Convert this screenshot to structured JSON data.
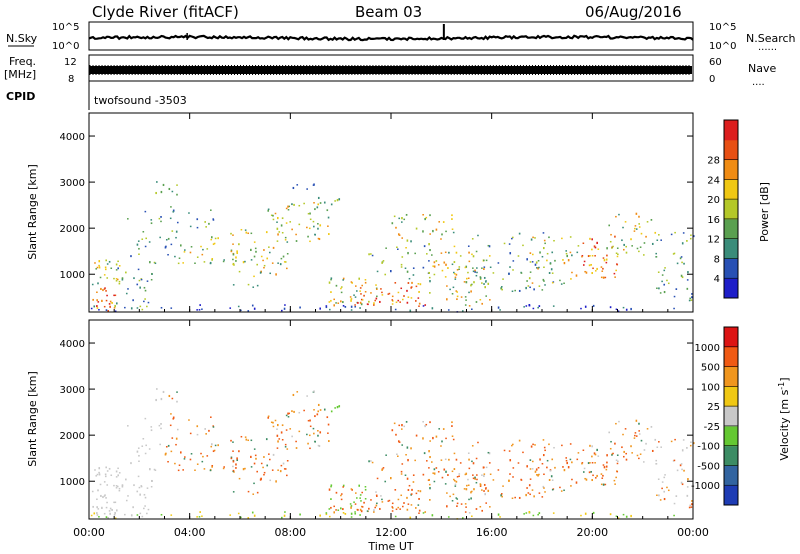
{
  "header": {
    "station": "Clyde River (fitACF)",
    "beam": "Beam 03",
    "date": "06/Aug/2016"
  },
  "top_panels": {
    "nsky_label": "N.Sky",
    "nsearch_label": "N.Search",
    "nsky_ticks": [
      "10^5",
      "10^0"
    ],
    "nsearch_ticks": [
      "10^5",
      "10^0"
    ],
    "freq_label_1": "Freq.",
    "freq_label_2": "[MHz]",
    "freq_ticks": [
      "12",
      "8"
    ],
    "nave_label": "Nave",
    "nave_ticks": [
      "60",
      "0"
    ],
    "cpid_label": "CPID",
    "cpid_value": "twofsound -3503",
    "dotted_marker": "......",
    "nave_marker": "...."
  },
  "chart_data": [
    {
      "type": "heatmap",
      "name": "power",
      "ylabel": "Slant Range [km]",
      "xlabel": "Time UT",
      "x_ticks": [
        "00:00",
        "04:00",
        "08:00",
        "12:00",
        "16:00",
        "20:00",
        "00:00"
      ],
      "x_range_hours": [
        0,
        24
      ],
      "y_ticks": [
        1000,
        2000,
        3000,
        4000
      ],
      "ylim": [
        180,
        4500
      ],
      "colorbar": {
        "label": "Power [dB]",
        "ticks": [
          4,
          8,
          12,
          16,
          20,
          24,
          28
        ],
        "range": [
          0,
          30
        ],
        "colors": [
          "#1e1ec8",
          "#2850b4",
          "#3a8c7a",
          "#5aa050",
          "#b4c828",
          "#f0c814",
          "#f08c14",
          "#e85014",
          "#dc1e1e"
        ]
      }
    },
    {
      "type": "heatmap",
      "name": "velocity",
      "ylabel": "Slant Range [km]",
      "xlabel": "Time UT",
      "x_ticks": [
        "00:00",
        "04:00",
        "08:00",
        "12:00",
        "16:00",
        "20:00",
        "00:00"
      ],
      "x_range_hours": [
        0,
        24
      ],
      "y_ticks": [
        1000,
        2000,
        3000,
        4000
      ],
      "ylim": [
        180,
        4500
      ],
      "colorbar": {
        "label": "Velocity [m s",
        "label_sup": "-1",
        "label_end": "]",
        "ticks": [
          "1000",
          "500",
          "100",
          "25",
          "-25",
          "-100",
          "-500",
          "-1000"
        ],
        "colors": [
          "#1e3cb4",
          "#3264a0",
          "#3c8c64",
          "#64c832",
          "#c8c8c8",
          "#f0c814",
          "#f0961e",
          "#f05a14",
          "#dc1414"
        ]
      }
    }
  ],
  "time_axis_label": "Time UT"
}
